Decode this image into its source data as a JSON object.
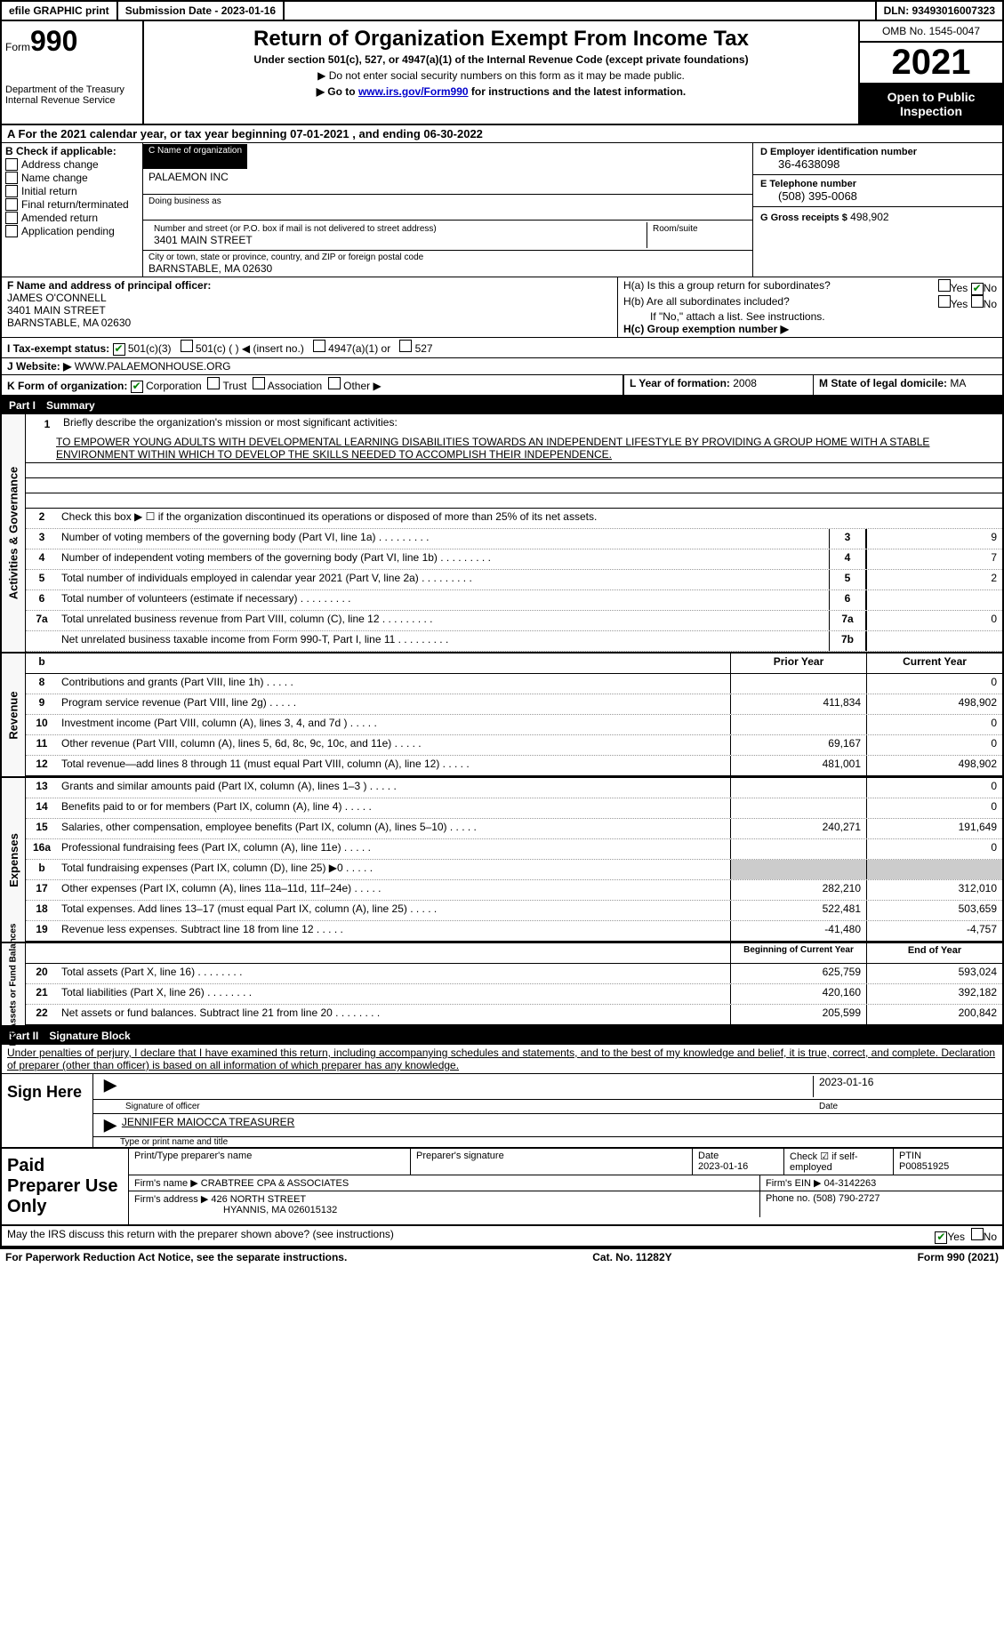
{
  "topbar": {
    "efile": "efile GRAPHIC print",
    "submission": "Submission Date - 2023-01-16",
    "dln": "DLN: 93493016007323"
  },
  "header": {
    "form_prefix": "Form",
    "form_number": "990",
    "title": "Return of Organization Exempt From Income Tax",
    "subtitle": "Under section 501(c), 527, or 4947(a)(1) of the Internal Revenue Code (except private foundations)",
    "note1": "▶ Do not enter social security numbers on this form as it may be made public.",
    "note2_prefix": "▶ Go to ",
    "note2_link": "www.irs.gov/Form990",
    "note2_suffix": " for instructions and the latest information.",
    "dept": "Department of the Treasury\nInternal Revenue Service",
    "omb": "OMB No. 1545-0047",
    "year": "2021",
    "inspection": "Open to Public Inspection"
  },
  "calendar": "A For the 2021 calendar year, or tax year beginning 07-01-2021    , and ending 06-30-2022",
  "sectionB": {
    "header": "B Check if applicable:",
    "items": [
      "Address change",
      "Name change",
      "Initial return",
      "Final return/terminated",
      "Amended return",
      "Application pending"
    ]
  },
  "sectionC": {
    "name_label": "C Name of organization",
    "name": "PALAEMON INC",
    "dba_label": "Doing business as",
    "dba": "",
    "addr_label": "Number and street (or P.O. box if mail is not delivered to street address)",
    "room_label": "Room/suite",
    "addr": "3401 MAIN STREET",
    "city_label": "City or town, state or province, country, and ZIP or foreign postal code",
    "city": "BARNSTABLE, MA  02630"
  },
  "sectionD": {
    "ein_label": "D Employer identification number",
    "ein": "36-4638098",
    "phone_label": "E Telephone number",
    "phone": "(508) 395-0068",
    "gross_label": "G Gross receipts $",
    "gross": "498,902"
  },
  "sectionF": {
    "label": "F Name and address of principal officer:",
    "name": "JAMES O'CONNELL",
    "addr1": "3401 MAIN STREET",
    "addr2": "BARNSTABLE, MA  02630"
  },
  "sectionH": {
    "ha_label": "H(a)  Is this a group return for subordinates?",
    "hb_label": "H(b)  Are all subordinates included?",
    "hb_note": "If \"No,\" attach a list. See instructions.",
    "hc_label": "H(c)  Group exemption number ▶",
    "yes": "Yes",
    "no": "No"
  },
  "taxExempt": {
    "label": "I   Tax-exempt status:",
    "opt1": "501(c)(3)",
    "opt2": "501(c) (  ) ◀ (insert no.)",
    "opt3": "4947(a)(1) or",
    "opt4": "527"
  },
  "website": {
    "label": "J  Website: ▶",
    "value": "WWW.PALAEMONHOUSE.ORG"
  },
  "sectionK": {
    "label": "K Form of organization:",
    "opt1": "Corporation",
    "opt2": "Trust",
    "opt3": "Association",
    "opt4": "Other ▶",
    "year_label": "L Year of formation: ",
    "year": "2008",
    "state_label": "M State of legal domicile: ",
    "state": "MA"
  },
  "part1": {
    "label": "Part I",
    "title": "Summary"
  },
  "summary": {
    "line1_label": "Briefly describe the organization's mission or most significant activities:",
    "mission": "TO EMPOWER YOUNG ADULTS WITH DEVELOPMENTAL LEARNING DISABILITIES TOWARDS AN INDEPENDENT LIFESTYLE BY PROVIDING A GROUP HOME WITH A STABLE ENVIRONMENT WITHIN WHICH TO DEVELOP THE SKILLS NEEDED TO ACCOMPLISH THEIR INDEPENDENCE.",
    "line2": "Check this box ▶ ☐ if the organization discontinued its operations or disposed of more than 25% of its net assets.",
    "lines": [
      {
        "n": "3",
        "t": "Number of voting members of the governing body (Part VI, line 1a)",
        "box": "3",
        "v": "9"
      },
      {
        "n": "4",
        "t": "Number of independent voting members of the governing body (Part VI, line 1b)",
        "box": "4",
        "v": "7"
      },
      {
        "n": "5",
        "t": "Total number of individuals employed in calendar year 2021 (Part V, line 2a)",
        "box": "5",
        "v": "2"
      },
      {
        "n": "6",
        "t": "Total number of volunteers (estimate if necessary)",
        "box": "6",
        "v": ""
      },
      {
        "n": "7a",
        "t": "Total unrelated business revenue from Part VIII, column (C), line 12",
        "box": "7a",
        "v": "0"
      },
      {
        "n": " ",
        "t": "Net unrelated business taxable income from Form 990-T, Part I, line 11",
        "box": "7b",
        "v": ""
      }
    ]
  },
  "revenue": {
    "tab": "Revenue",
    "header_prior": "Prior Year",
    "header_current": "Current Year",
    "lines": [
      {
        "n": "8",
        "t": "Contributions and grants (Part VIII, line 1h)",
        "p": "",
        "c": "0"
      },
      {
        "n": "9",
        "t": "Program service revenue (Part VIII, line 2g)",
        "p": "411,834",
        "c": "498,902"
      },
      {
        "n": "10",
        "t": "Investment income (Part VIII, column (A), lines 3, 4, and 7d )",
        "p": "",
        "c": "0"
      },
      {
        "n": "11",
        "t": "Other revenue (Part VIII, column (A), lines 5, 6d, 8c, 9c, 10c, and 11e)",
        "p": "69,167",
        "c": "0"
      },
      {
        "n": "12",
        "t": "Total revenue—add lines 8 through 11 (must equal Part VIII, column (A), line 12)",
        "p": "481,001",
        "c": "498,902"
      }
    ]
  },
  "expenses": {
    "tab": "Expenses",
    "lines": [
      {
        "n": "13",
        "t": "Grants and similar amounts paid (Part IX, column (A), lines 1–3 )",
        "p": "",
        "c": "0"
      },
      {
        "n": "14",
        "t": "Benefits paid to or for members (Part IX, column (A), line 4)",
        "p": "",
        "c": "0"
      },
      {
        "n": "15",
        "t": "Salaries, other compensation, employee benefits (Part IX, column (A), lines 5–10)",
        "p": "240,271",
        "c": "191,649"
      },
      {
        "n": "16a",
        "t": "Professional fundraising fees (Part IX, column (A), line 11e)",
        "p": "",
        "c": "0"
      },
      {
        "n": "b",
        "t": "Total fundraising expenses (Part IX, column (D), line 25) ▶0",
        "p": "",
        "c": "",
        "shaded": true
      },
      {
        "n": "17",
        "t": "Other expenses (Part IX, column (A), lines 11a–11d, 11f–24e)",
        "p": "282,210",
        "c": "312,010"
      },
      {
        "n": "18",
        "t": "Total expenses. Add lines 13–17 (must equal Part IX, column (A), line 25)",
        "p": "522,481",
        "c": "503,659"
      },
      {
        "n": "19",
        "t": "Revenue less expenses. Subtract line 18 from line 12",
        "p": "-41,480",
        "c": "-4,757"
      }
    ]
  },
  "netassets": {
    "tab": "Net Assets or Fund Balances",
    "header_begin": "Beginning of Current Year",
    "header_end": "End of Year",
    "lines": [
      {
        "n": "20",
        "t": "Total assets (Part X, line 16)",
        "p": "625,759",
        "c": "593,024"
      },
      {
        "n": "21",
        "t": "Total liabilities (Part X, line 26)",
        "p": "420,160",
        "c": "392,182"
      },
      {
        "n": "22",
        "t": "Net assets or fund balances. Subtract line 21 from line 20",
        "p": "205,599",
        "c": "200,842"
      }
    ]
  },
  "part2": {
    "label": "Part II",
    "title": "Signature Block",
    "declaration": "Under penalties of perjury, I declare that I have examined this return, including accompanying schedules and statements, and to the best of my knowledge and belief, it is true, correct, and complete. Declaration of preparer (other than officer) is based on all information of which preparer has any knowledge."
  },
  "sign": {
    "label": "Sign Here",
    "sig_officer": "Signature of officer",
    "date": "2023-01-16",
    "date_label": "Date",
    "name": "JENNIFER MAIOCCA  TREASURER",
    "name_label": "Type or print name and title"
  },
  "preparer": {
    "label": "Paid Preparer Use Only",
    "name_label": "Print/Type preparer's name",
    "sig_label": "Preparer's signature",
    "date_label": "Date",
    "date": "2023-01-16",
    "check_label": "Check ☑ if self-employed",
    "ptin_label": "PTIN",
    "ptin": "P00851925",
    "firm_name_label": "Firm's name    ▶",
    "firm_name": "CRABTREE CPA & ASSOCIATES",
    "firm_ein_label": "Firm's EIN ▶",
    "firm_ein": "04-3142263",
    "firm_addr_label": "Firm's address ▶",
    "firm_addr1": "426 NORTH STREET",
    "firm_addr2": "HYANNIS, MA  026015132",
    "phone_label": "Phone no.",
    "phone": "(508) 790-2727"
  },
  "discuss": {
    "text": "May the IRS discuss this return with the preparer shown above? (see instructions)",
    "yes": "Yes",
    "no": "No"
  },
  "footer": {
    "left": "For Paperwork Reduction Act Notice, see the separate instructions.",
    "center": "Cat. No. 11282Y",
    "right": "Form 990 (2021)"
  },
  "govTab": "Activities & Governance"
}
